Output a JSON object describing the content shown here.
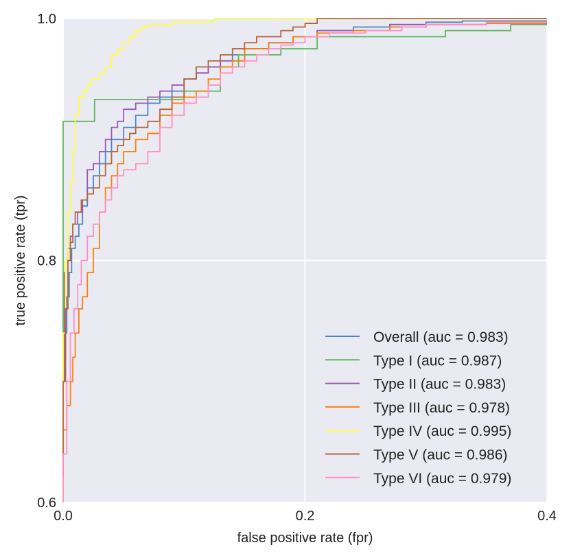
{
  "chart_data": {
    "type": "line",
    "title": "",
    "xlabel": "false positive rate (fpr)",
    "ylabel": "true positive rate (tpr)",
    "xlim": [
      0.0,
      0.4
    ],
    "ylim": [
      0.6,
      1.0
    ],
    "xticks": [
      0.0,
      0.2,
      0.4
    ],
    "xtick_labels": [
      "0.0",
      "0.2",
      "0.4"
    ],
    "yticks": [
      0.6,
      0.8,
      1.0
    ],
    "ytick_labels": [
      "0.6",
      "0.8",
      "1.0"
    ],
    "grid": true,
    "legend_position": "bottom-right",
    "series": [
      {
        "name": "Overall (auc = 0.983)",
        "color": "#4c86c6",
        "x": [
          0.0,
          0.001,
          0.003,
          0.005,
          0.007,
          0.01,
          0.013,
          0.016,
          0.02,
          0.025,
          0.03,
          0.035,
          0.04,
          0.05,
          0.06,
          0.07,
          0.08,
          0.09,
          0.1,
          0.11,
          0.12,
          0.13,
          0.14,
          0.15,
          0.17,
          0.19,
          0.21,
          0.24,
          0.27,
          0.3,
          0.33,
          0.36,
          0.4
        ],
        "y": [
          0.68,
          0.7,
          0.74,
          0.77,
          0.79,
          0.81,
          0.82,
          0.83,
          0.845,
          0.86,
          0.87,
          0.88,
          0.89,
          0.9,
          0.91,
          0.92,
          0.93,
          0.935,
          0.94,
          0.95,
          0.955,
          0.96,
          0.965,
          0.97,
          0.975,
          0.98,
          0.985,
          0.99,
          0.993,
          0.995,
          0.997,
          0.998,
          0.998
        ]
      },
      {
        "name": "Type I (auc = 0.987)",
        "color": "#5cb85c",
        "x": [
          0.0,
          0.0,
          0.026,
          0.026,
          0.1,
          0.1,
          0.13,
          0.13,
          0.145,
          0.145,
          0.18,
          0.18,
          0.21,
          0.21,
          0.316,
          0.316,
          0.37,
          0.37,
          0.4
        ],
        "y": [
          0.6,
          0.915,
          0.915,
          0.933,
          0.933,
          0.94,
          0.94,
          0.96,
          0.96,
          0.97,
          0.97,
          0.975,
          0.975,
          0.985,
          0.985,
          0.99,
          0.99,
          0.995,
          0.995
        ]
      },
      {
        "name": "Type II (auc = 0.983)",
        "color": "#9b59b6",
        "x": [
          0.0,
          0.001,
          0.002,
          0.004,
          0.006,
          0.008,
          0.012,
          0.016,
          0.02,
          0.025,
          0.03,
          0.035,
          0.04,
          0.045,
          0.05,
          0.06,
          0.07,
          0.08,
          0.09,
          0.1,
          0.11,
          0.12,
          0.13,
          0.15,
          0.17,
          0.19,
          0.21,
          0.24,
          0.27,
          0.3,
          0.35,
          0.4
        ],
        "y": [
          0.64,
          0.7,
          0.79,
          0.8,
          0.81,
          0.82,
          0.83,
          0.84,
          0.85,
          0.875,
          0.88,
          0.89,
          0.9,
          0.91,
          0.915,
          0.925,
          0.93,
          0.935,
          0.94,
          0.945,
          0.95,
          0.955,
          0.96,
          0.965,
          0.975,
          0.98,
          0.985,
          0.99,
          0.99,
          0.995,
          0.995,
          0.996
        ]
      },
      {
        "name": "Type III (auc = 0.978)",
        "color": "#ff7f0e",
        "x": [
          0.0,
          0.003,
          0.006,
          0.008,
          0.01,
          0.013,
          0.016,
          0.02,
          0.025,
          0.03,
          0.035,
          0.04,
          0.045,
          0.05,
          0.06,
          0.07,
          0.08,
          0.09,
          0.1,
          0.11,
          0.12,
          0.13,
          0.14,
          0.15,
          0.17,
          0.19,
          0.21,
          0.24,
          0.27,
          0.3,
          0.35,
          0.4
        ],
        "y": [
          0.6,
          0.66,
          0.68,
          0.7,
          0.72,
          0.74,
          0.76,
          0.77,
          0.79,
          0.81,
          0.84,
          0.86,
          0.87,
          0.88,
          0.89,
          0.9,
          0.905,
          0.92,
          0.93,
          0.935,
          0.94,
          0.95,
          0.96,
          0.965,
          0.975,
          0.98,
          0.985,
          0.988,
          0.99,
          0.993,
          0.995,
          0.996
        ]
      },
      {
        "name": "Type IV (auc = 0.995)",
        "color": "#ffff3f",
        "x": [
          0.0,
          0.002,
          0.004,
          0.006,
          0.008,
          0.01,
          0.013,
          0.017,
          0.02,
          0.023,
          0.027,
          0.03,
          0.035,
          0.04,
          0.045,
          0.05,
          0.055,
          0.06,
          0.065,
          0.07,
          0.08,
          0.09,
          0.1,
          0.11,
          0.12,
          0.125,
          0.13,
          0.15,
          0.17,
          0.19,
          0.22,
          0.4
        ],
        "y": [
          0.6,
          0.74,
          0.8,
          0.84,
          0.865,
          0.89,
          0.92,
          0.935,
          0.94,
          0.945,
          0.95,
          0.95,
          0.955,
          0.96,
          0.97,
          0.975,
          0.98,
          0.985,
          0.99,
          0.993,
          0.995,
          0.995,
          0.997,
          0.997,
          0.997,
          0.998,
          1.0,
          1.0,
          1.0,
          1.0,
          1.0,
          1.0
        ]
      },
      {
        "name": "Type V (auc = 0.986)",
        "color": "#b5653a",
        "x": [
          0.0,
          0.002,
          0.004,
          0.006,
          0.008,
          0.01,
          0.015,
          0.02,
          0.025,
          0.03,
          0.035,
          0.04,
          0.045,
          0.05,
          0.055,
          0.06,
          0.07,
          0.08,
          0.09,
          0.1,
          0.11,
          0.12,
          0.13,
          0.14,
          0.15,
          0.16,
          0.17,
          0.18,
          0.19,
          0.2,
          0.21,
          0.22,
          0.26,
          0.3,
          0.35,
          0.4
        ],
        "y": [
          0.62,
          0.7,
          0.76,
          0.8,
          0.815,
          0.83,
          0.84,
          0.85,
          0.855,
          0.86,
          0.87,
          0.88,
          0.89,
          0.895,
          0.9,
          0.905,
          0.91,
          0.915,
          0.925,
          0.935,
          0.95,
          0.96,
          0.965,
          0.97,
          0.975,
          0.98,
          0.985,
          0.985,
          0.99,
          0.993,
          0.996,
          1.0,
          1.0,
          1.0,
          1.0,
          1.0
        ]
      },
      {
        "name": "Type VI (auc = 0.979)",
        "color": "#ff8fc8",
        "x": [
          0.0,
          0.003,
          0.006,
          0.009,
          0.012,
          0.015,
          0.02,
          0.025,
          0.03,
          0.035,
          0.04,
          0.045,
          0.05,
          0.06,
          0.07,
          0.08,
          0.09,
          0.1,
          0.11,
          0.12,
          0.13,
          0.14,
          0.15,
          0.16,
          0.17,
          0.18,
          0.19,
          0.2,
          0.22,
          0.25,
          0.28,
          0.3,
          0.35,
          0.4
        ],
        "y": [
          0.6,
          0.64,
          0.7,
          0.74,
          0.76,
          0.78,
          0.8,
          0.82,
          0.83,
          0.84,
          0.85,
          0.86,
          0.87,
          0.875,
          0.88,
          0.89,
          0.91,
          0.92,
          0.93,
          0.935,
          0.945,
          0.955,
          0.96,
          0.965,
          0.97,
          0.975,
          0.978,
          0.98,
          0.985,
          0.988,
          0.99,
          0.993,
          0.995,
          0.997
        ]
      }
    ]
  }
}
